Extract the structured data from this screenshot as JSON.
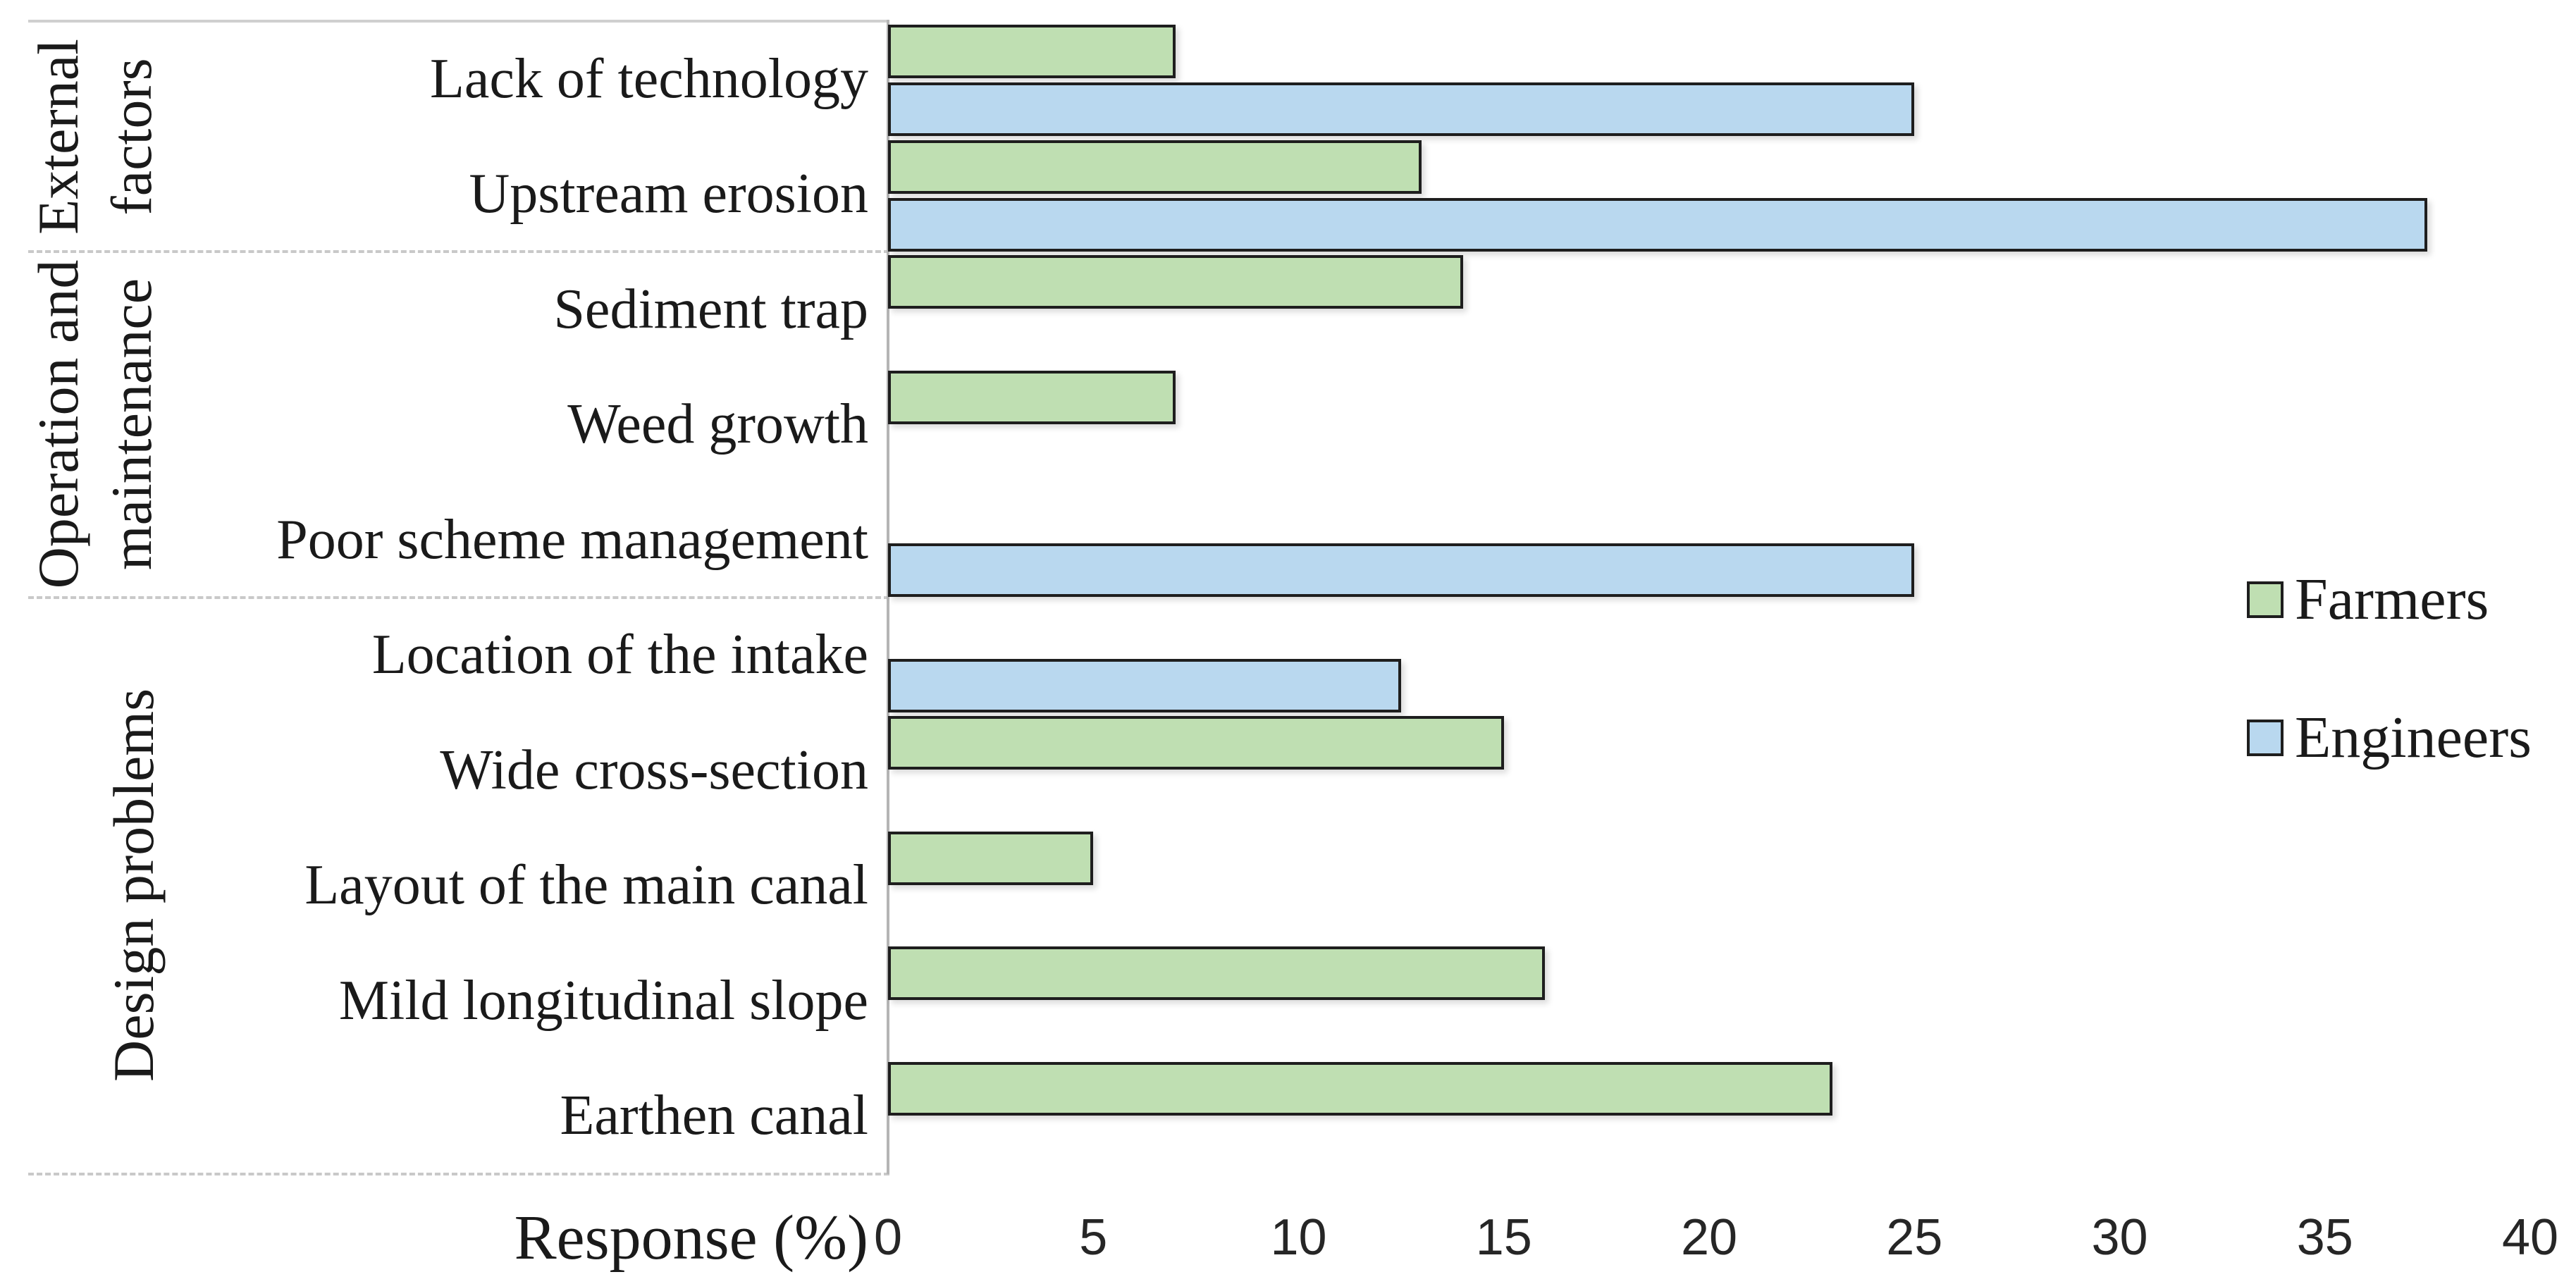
{
  "chart_data": {
    "type": "bar",
    "orientation": "horizontal",
    "title": "",
    "xlabel": "Response (%)",
    "ylabel": "",
    "xlim": [
      0,
      40
    ],
    "x_ticks": [
      0,
      5,
      10,
      15,
      20,
      25,
      30,
      35,
      40
    ],
    "grid": false,
    "legend_position": "right",
    "series_names": [
      "Farmers",
      "Engineers"
    ],
    "rows": [
      {
        "group": "External factors",
        "category": "Lack of technology",
        "farmers": 7,
        "engineers": 25
      },
      {
        "group": "External factors",
        "category": "Upstream erosion",
        "farmers": 13,
        "engineers": 37.5
      },
      {
        "group": "Operation and maintenance",
        "category": "Sediment trap",
        "farmers": 14,
        "engineers": 0
      },
      {
        "group": "Operation and maintenance",
        "category": "Weed growth",
        "farmers": 7,
        "engineers": 0
      },
      {
        "group": "Operation and maintenance",
        "category": "Poor scheme management",
        "farmers": 0,
        "engineers": 25
      },
      {
        "group": "Design problems",
        "category": "Location of the intake",
        "farmers": 0,
        "engineers": 12.5
      },
      {
        "group": "Design problems",
        "category": "Wide cross-section",
        "farmers": 15,
        "engineers": 0
      },
      {
        "group": "Design problems",
        "category": "Layout of the main canal",
        "farmers": 5,
        "engineers": 0
      },
      {
        "group": "Design problems",
        "category": "Mild longitudinal slope",
        "farmers": 16,
        "engineers": 0
      },
      {
        "group": "Design problems",
        "category": "Earthen canal",
        "farmers": 23,
        "engineers": 0
      }
    ],
    "group_labels": [
      {
        "label": "External factors",
        "lines": [
          "External",
          "factors"
        ],
        "row_span": [
          0,
          2
        ]
      },
      {
        "label": "Operation and maintenance",
        "lines": [
          "Operation and",
          "maintenance"
        ],
        "row_span": [
          2,
          5
        ]
      },
      {
        "label": "Design problems",
        "lines": [
          "Design problems"
        ],
        "row_span": [
          5,
          10
        ]
      }
    ],
    "legend": [
      {
        "label": "Farmers",
        "color": "#BFDFB2"
      },
      {
        "label": "Engineers",
        "color": "#B9D8EF"
      }
    ],
    "colors": {
      "farmers_fill": "#BFDFB2",
      "engineers_fill": "#B9D8EF",
      "bar_border": "#1E1E1E",
      "text": "#1A1A1A",
      "table_border": "#C9C9C9",
      "axis_line": "#B5B5B5"
    }
  }
}
